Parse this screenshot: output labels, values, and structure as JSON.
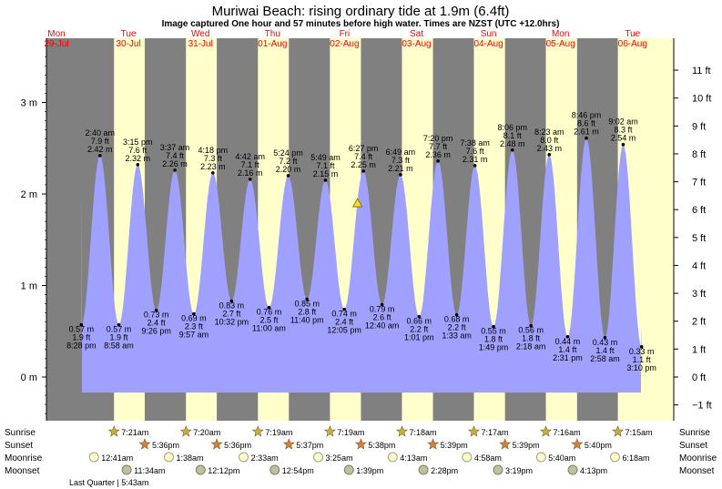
{
  "title": "Muriwai Beach: rising  ordinary tide at 1.9m (6.4ft)",
  "subtitle": "Image captured One hour and 57 minutes before high water. Times are NZST (UTC +12.0hrs)",
  "colors": {
    "night": "#808080",
    "day": "#ffffcc",
    "tide": "#a0a0ff",
    "sun_marker": "#c8b040",
    "sunset_marker": "#d08040",
    "moon_rise": "#ffffcc",
    "moon_set": "#c0c0a0"
  },
  "chart_data": {
    "type": "area",
    "title": "Muriwai Beach: rising  ordinary tide at 1.9m (6.4ft)",
    "left_axis": {
      "unit": "m",
      "ticks": [
        "0 m",
        "1 m",
        "2 m",
        "3 m"
      ],
      "values": [
        0,
        1,
        2,
        3
      ]
    },
    "right_axis": {
      "unit": "ft",
      "ticks": [
        "−1 ft",
        "0 ft",
        "1 ft",
        "2 ft",
        "3 ft",
        "4 ft",
        "5 ft",
        "6 ft",
        "7 ft",
        "8 ft",
        "9 ft",
        "10 ft",
        "11 ft"
      ],
      "values": [
        -1,
        0,
        1,
        2,
        3,
        4,
        5,
        6,
        7,
        8,
        9,
        10,
        11
      ]
    },
    "ylim_m": [
      -0.45,
      3.62
    ],
    "days": [
      {
        "dow": "Mon",
        "date": "29-Jul"
      },
      {
        "dow": "Tue",
        "date": "30-Jul"
      },
      {
        "dow": "Wed",
        "date": "31-Jul"
      },
      {
        "dow": "Thu",
        "date": "01-Aug"
      },
      {
        "dow": "Fri",
        "date": "02-Aug"
      },
      {
        "dow": "Sat",
        "date": "03-Aug"
      },
      {
        "dow": "Sun",
        "date": "04-Aug"
      },
      {
        "dow": "Mon",
        "date": "05-Aug"
      },
      {
        "dow": "Tue",
        "date": "06-Aug"
      }
    ],
    "tides": [
      {
        "type": "low",
        "day": 0,
        "time": "8:28 pm",
        "m": "0.57 m",
        "ft": "1.9 ft",
        "v": 0.57
      },
      {
        "type": "high",
        "day": 1,
        "time": "2:40 am",
        "m": "2.42 m",
        "ft": "7.9 ft",
        "v": 2.42
      },
      {
        "type": "low",
        "day": 1,
        "time": "8:58 am",
        "m": "0.57 m",
        "ft": "1.9 ft",
        "v": 0.57
      },
      {
        "type": "high",
        "day": 1,
        "time": "3:15 pm",
        "m": "2.32 m",
        "ft": "7.6 ft",
        "v": 2.32
      },
      {
        "type": "low",
        "day": 1,
        "time": "9:26 pm",
        "m": "0.73 m",
        "ft": "2.4 ft",
        "v": 0.73
      },
      {
        "type": "high",
        "day": 2,
        "time": "3:37 am",
        "m": "2.26 m",
        "ft": "7.4 ft",
        "v": 2.26
      },
      {
        "type": "low",
        "day": 2,
        "time": "9:57 am",
        "m": "0.69 m",
        "ft": "2.3 ft",
        "v": 0.69
      },
      {
        "type": "high",
        "day": 2,
        "time": "4:18 pm",
        "m": "2.23 m",
        "ft": "7.3 ft",
        "v": 2.23
      },
      {
        "type": "low",
        "day": 2,
        "time": "10:32 pm",
        "m": "0.83 m",
        "ft": "2.7 ft",
        "v": 0.83
      },
      {
        "type": "high",
        "day": 3,
        "time": "4:42 am",
        "m": "2.16 m",
        "ft": "7.1 ft",
        "v": 2.16
      },
      {
        "type": "low",
        "day": 3,
        "time": "11:00 am",
        "m": "0.76 m",
        "ft": "2.5 ft",
        "v": 0.76
      },
      {
        "type": "high",
        "day": 3,
        "time": "5:24 pm",
        "m": "2.20 m",
        "ft": "7.2 ft",
        "v": 2.2
      },
      {
        "type": "low",
        "day": 3,
        "time": "11:40 pm",
        "m": "0.85 m",
        "ft": "2.8 ft",
        "v": 0.85
      },
      {
        "type": "high",
        "day": 4,
        "time": "5:49 am",
        "m": "2.15 m",
        "ft": "7.1 ft",
        "v": 2.15
      },
      {
        "type": "low",
        "day": 4,
        "time": "12:05 pm",
        "m": "0.74 m",
        "ft": "2.4 ft",
        "v": 0.74
      },
      {
        "type": "high",
        "day": 4,
        "time": "6:27 pm",
        "m": "2.25 m",
        "ft": "7.4 ft",
        "v": 2.25
      },
      {
        "type": "low",
        "day": 5,
        "time": "12:40 am",
        "m": "0.79 m",
        "ft": "2.6 ft",
        "v": 0.79
      },
      {
        "type": "high",
        "day": 5,
        "time": "6:49 am",
        "m": "2.21 m",
        "ft": "7.3 ft",
        "v": 2.21
      },
      {
        "type": "low",
        "day": 5,
        "time": "1:01 pm",
        "m": "0.66 m",
        "ft": "2.2 ft",
        "v": 0.66
      },
      {
        "type": "high",
        "day": 5,
        "time": "7:20 pm",
        "m": "2.36 m",
        "ft": "7.7 ft",
        "v": 2.36
      },
      {
        "type": "low",
        "day": 6,
        "time": "1:33 am",
        "m": "0.68 m",
        "ft": "2.2 ft",
        "v": 0.68
      },
      {
        "type": "high",
        "day": 6,
        "time": "7:38 am",
        "m": "2.31 m",
        "ft": "7.6 ft",
        "v": 2.31
      },
      {
        "type": "low",
        "day": 6,
        "time": "1:49 pm",
        "m": "0.55 m",
        "ft": "1.8 ft",
        "v": 0.55
      },
      {
        "type": "high",
        "day": 6,
        "time": "8:06 pm",
        "m": "2.48 m",
        "ft": "8.1 ft",
        "v": 2.48
      },
      {
        "type": "low",
        "day": 7,
        "time": "2:18 am",
        "m": "0.56 m",
        "ft": "1.8 ft",
        "v": 0.56
      },
      {
        "type": "high",
        "day": 7,
        "time": "8:23 am",
        "m": "2.43 m",
        "ft": "8.0 ft",
        "v": 2.43
      },
      {
        "type": "low",
        "day": 7,
        "time": "2:31 pm",
        "m": "0.44 m",
        "ft": "1.4 ft",
        "v": 0.44
      },
      {
        "type": "high",
        "day": 7,
        "time": "8:46 pm",
        "m": "2.61 m",
        "ft": "8.6 ft",
        "v": 2.61
      },
      {
        "type": "low",
        "day": 8,
        "time": "2:58 am",
        "m": "0.43 m",
        "ft": "1.4 ft",
        "v": 0.43
      },
      {
        "type": "high",
        "day": 8,
        "time": "9:02 am",
        "m": "2.54 m",
        "ft": "8.3 ft",
        "v": 2.54
      },
      {
        "type": "low",
        "day": 8,
        "time": "3:10 pm",
        "m": "0.33 m",
        "ft": "1.1 ft",
        "v": 0.33
      }
    ],
    "current_level_m": 1.9,
    "current_label": "rising  ordinary tide at 1.9m (6.4ft)"
  },
  "rows": {
    "sunrise_label": "Sunrise",
    "sunset_label": "Sunset",
    "moonrise_label": "Moonrise",
    "moonset_label": "Moonset",
    "sunrise": [
      "7:21am",
      "7:20am",
      "7:19am",
      "7:19am",
      "7:18am",
      "7:17am",
      "7:16am",
      "7:15am"
    ],
    "sunset": [
      "5:36pm",
      "5:36pm",
      "5:37pm",
      "5:38pm",
      "5:39pm",
      "5:39pm",
      "5:40pm"
    ],
    "moonrise": [
      "12:41am",
      "1:38am",
      "2:33am",
      "3:25am",
      "4:13am",
      "4:58am",
      "5:40am",
      "6:18am"
    ],
    "moonset": [
      "11:34am",
      "12:12pm",
      "12:54pm",
      "1:39pm",
      "2:28pm",
      "3:19pm",
      "4:13pm"
    ],
    "moon_phase": "Last Quarter | 5:43am"
  }
}
